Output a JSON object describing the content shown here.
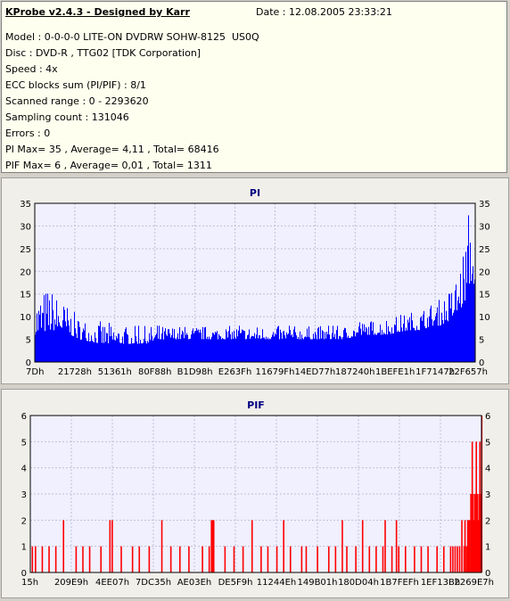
{
  "header": {
    "app_title": "KProbe v2.4.3 - Designed by Karr",
    "date": "Date : 12.08.2005 23:33:21",
    "lines": [
      "Model : 0-0-0-0 LITE-ON DVDRW SOHW-8125  US0Q",
      "Disc : DVD-R , TTG02 [TDK Corporation]",
      "Speed : 4x",
      "ECC blocks sum (PI/PIF) : 8/1",
      "Scanned range : 0 - 2293620",
      "Sampling count : 131046",
      "Errors : 0",
      "PI Max= 35 , Average= 4,11 , Total= 68416",
      "PIF Max= 6 , Average= 0,01 , Total= 1311"
    ]
  },
  "colors": {
    "pi_bar": "#0000ff",
    "pif_bar": "#ff0000",
    "plot_bg": "#f0f0ff",
    "grid": "#c0c0d8",
    "title": "#000080"
  },
  "chart_data": [
    {
      "type": "bar",
      "title": "PI",
      "xlabel": "",
      "ylabel": "",
      "ylim": [
        0,
        35
      ],
      "yticks": [
        0,
        5,
        10,
        15,
        20,
        25,
        30,
        35
      ],
      "xtick_labels": [
        "7Dh",
        "21728h",
        "51361h",
        "80F88h",
        "B1D98h",
        "E263Fh",
        "11679Fh",
        "14ED77h",
        "187240h",
        "1BEFE1h",
        "1F7147h",
        "22F657h"
      ],
      "grid": true,
      "envelope": {
        "x_fraction": [
          0.0,
          0.03,
          0.06,
          0.1,
          0.15,
          0.2,
          0.25,
          0.3,
          0.35,
          0.4,
          0.45,
          0.5,
          0.55,
          0.6,
          0.65,
          0.7,
          0.75,
          0.8,
          0.85,
          0.88,
          0.9,
          0.92,
          0.94,
          0.95,
          0.96,
          0.97,
          0.98,
          0.985,
          0.99,
          1.0
        ],
        "base": [
          6,
          7,
          7,
          5,
          4,
          4,
          4,
          5,
          5,
          5,
          5,
          5,
          5,
          5,
          5,
          5,
          6,
          6,
          7,
          7,
          8,
          8,
          9,
          10,
          11,
          12,
          14,
          16,
          18,
          17
        ],
        "peak": [
          15,
          17,
          14,
          10,
          9,
          8,
          8,
          8,
          8,
          8,
          8,
          8,
          8,
          8,
          8,
          8,
          9,
          10,
          11,
          12,
          13,
          14,
          16,
          17,
          20,
          24,
          28,
          35,
          30,
          25
        ]
      }
    },
    {
      "type": "bar",
      "title": "PIF",
      "xlabel": "",
      "ylabel": "",
      "ylim": [
        0,
        6
      ],
      "yticks": [
        0,
        1,
        2,
        3,
        4,
        5,
        6
      ],
      "xtick_labels": [
        "15h",
        "209E9h",
        "4EE07h",
        "7DC35h",
        "AE03Eh",
        "DE5F9h",
        "11244Eh",
        "149B01h",
        "180D04h",
        "1B7FEFh",
        "1EF13Bh",
        "2269E7h"
      ],
      "grid": true,
      "spikes": [
        [
          0.003,
          1
        ],
        [
          0.01,
          1
        ],
        [
          0.025,
          1
        ],
        [
          0.04,
          1
        ],
        [
          0.055,
          1
        ],
        [
          0.072,
          2
        ],
        [
          0.1,
          1
        ],
        [
          0.115,
          1
        ],
        [
          0.13,
          1
        ],
        [
          0.155,
          1
        ],
        [
          0.175,
          2
        ],
        [
          0.18,
          2
        ],
        [
          0.2,
          1
        ],
        [
          0.225,
          1
        ],
        [
          0.24,
          1
        ],
        [
          0.262,
          1
        ],
        [
          0.29,
          2
        ],
        [
          0.31,
          1
        ],
        [
          0.33,
          1
        ],
        [
          0.35,
          1
        ],
        [
          0.38,
          1
        ],
        [
          0.395,
          1
        ],
        [
          0.4,
          2
        ],
        [
          0.402,
          2
        ],
        [
          0.405,
          2
        ],
        [
          0.43,
          1
        ],
        [
          0.45,
          1
        ],
        [
          0.47,
          1
        ],
        [
          0.49,
          2
        ],
        [
          0.51,
          1
        ],
        [
          0.525,
          1
        ],
        [
          0.545,
          1
        ],
        [
          0.56,
          2
        ],
        [
          0.575,
          1
        ],
        [
          0.6,
          1
        ],
        [
          0.61,
          1
        ],
        [
          0.635,
          1
        ],
        [
          0.66,
          1
        ],
        [
          0.675,
          1
        ],
        [
          0.69,
          2
        ],
        [
          0.7,
          1
        ],
        [
          0.72,
          1
        ],
        [
          0.735,
          2
        ],
        [
          0.75,
          1
        ],
        [
          0.765,
          1
        ],
        [
          0.78,
          1
        ],
        [
          0.785,
          2
        ],
        [
          0.8,
          1
        ],
        [
          0.81,
          2
        ],
        [
          0.815,
          1
        ],
        [
          0.83,
          1
        ],
        [
          0.85,
          1
        ],
        [
          0.865,
          1
        ],
        [
          0.88,
          1
        ],
        [
          0.9,
          1
        ],
        [
          0.915,
          1
        ],
        [
          0.93,
          1
        ],
        [
          0.935,
          1
        ],
        [
          0.94,
          1
        ],
        [
          0.945,
          1
        ],
        [
          0.95,
          1
        ],
        [
          0.955,
          2
        ],
        [
          0.96,
          1
        ],
        [
          0.962,
          2
        ],
        [
          0.965,
          1
        ],
        [
          0.968,
          2
        ],
        [
          0.97,
          2
        ],
        [
          0.972,
          2
        ],
        [
          0.975,
          3
        ],
        [
          0.977,
          2
        ],
        [
          0.978,
          5
        ],
        [
          0.98,
          3
        ],
        [
          0.982,
          2
        ],
        [
          0.984,
          3
        ],
        [
          0.985,
          2
        ],
        [
          0.987,
          5
        ],
        [
          0.989,
          3
        ],
        [
          0.991,
          2
        ],
        [
          0.993,
          3
        ],
        [
          0.995,
          5
        ],
        [
          0.997,
          3
        ],
        [
          0.999,
          6
        ]
      ]
    }
  ]
}
